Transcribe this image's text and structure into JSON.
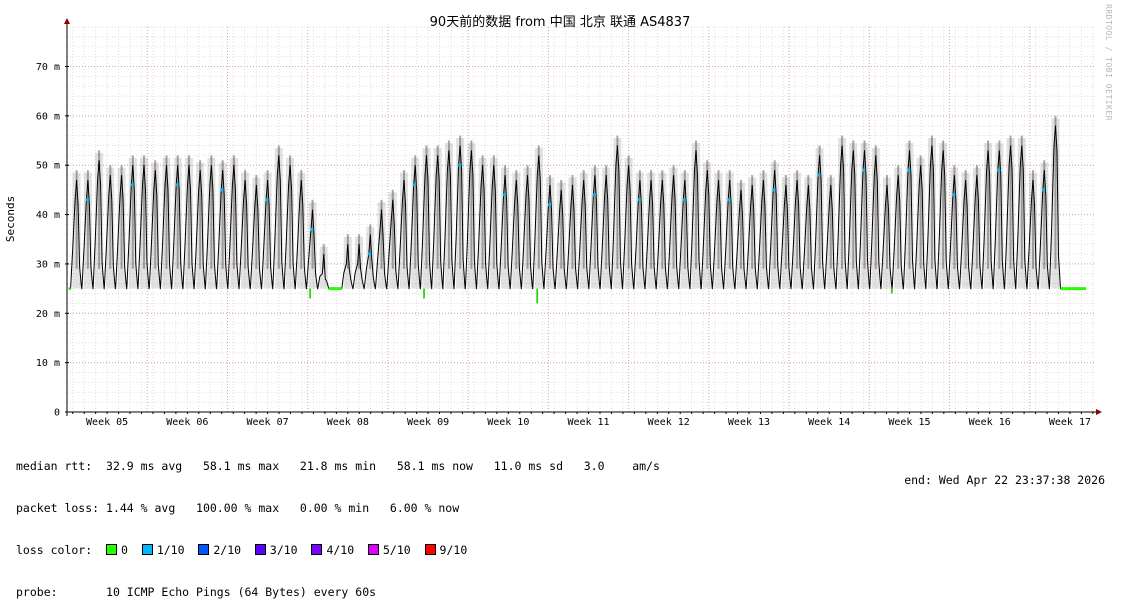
{
  "colors": {
    "plot_bg": "#ffffff",
    "minor_grid": "#dedede",
    "major_grid": "#e0a0a0",
    "axis": "#000000",
    "arrow": "#8b0000",
    "smoke": "#606060",
    "line": "#000000"
  },
  "chart_data": {
    "type": "line",
    "title": "90天前的数据 from 中国 北京 联通 AS4837",
    "ylabel": "Seconds",
    "ylim": [
      0,
      0.078
    ],
    "y_ticks": [
      {
        "value": 0,
        "label": "0"
      },
      {
        "value": 0.01,
        "label": "10 m"
      },
      {
        "value": 0.02,
        "label": "20 m"
      },
      {
        "value": 0.03,
        "label": "30 m"
      },
      {
        "value": 0.04,
        "label": "40 m"
      },
      {
        "value": 0.05,
        "label": "50 m"
      },
      {
        "value": 0.06,
        "label": "60 m"
      },
      {
        "value": 0.07,
        "label": "70 m"
      }
    ],
    "x_range_weeks": [
      4.5,
      17.3
    ],
    "x_ticks": [
      {
        "value": 5,
        "label": "Week 05"
      },
      {
        "value": 6,
        "label": "Week 06"
      },
      {
        "value": 7,
        "label": "Week 07"
      },
      {
        "value": 8,
        "label": "Week 08"
      },
      {
        "value": 9,
        "label": "Week 09"
      },
      {
        "value": 10,
        "label": "Week 10"
      },
      {
        "value": 11,
        "label": "Week 11"
      },
      {
        "value": 12,
        "label": "Week 12"
      },
      {
        "value": 13,
        "label": "Week 13"
      },
      {
        "value": 14,
        "label": "Week 14"
      },
      {
        "value": 15,
        "label": "Week 15"
      },
      {
        "value": 16,
        "label": "Week 16"
      },
      {
        "value": 17,
        "label": "Week 17"
      }
    ],
    "grid": true,
    "series": [
      {
        "name": "median rtt",
        "baseline": 0.025,
        "daily_peaks": [
          {
            "week": 4.62,
            "peak": 0.047
          },
          {
            "week": 4.76,
            "peak": 0.047
          },
          {
            "week": 4.9,
            "peak": 0.051
          },
          {
            "week": 5.04,
            "peak": 0.048
          },
          {
            "week": 5.18,
            "peak": 0.048
          },
          {
            "week": 5.32,
            "peak": 0.05
          },
          {
            "week": 5.46,
            "peak": 0.05
          },
          {
            "week": 5.6,
            "peak": 0.049
          },
          {
            "week": 5.74,
            "peak": 0.05
          },
          {
            "week": 5.88,
            "peak": 0.05
          },
          {
            "week": 6.02,
            "peak": 0.05
          },
          {
            "week": 6.16,
            "peak": 0.049
          },
          {
            "week": 6.3,
            "peak": 0.05
          },
          {
            "week": 6.44,
            "peak": 0.049
          },
          {
            "week": 6.58,
            "peak": 0.05
          },
          {
            "week": 6.72,
            "peak": 0.047
          },
          {
            "week": 6.86,
            "peak": 0.046
          },
          {
            "week": 7.0,
            "peak": 0.047
          },
          {
            "week": 7.14,
            "peak": 0.052
          },
          {
            "week": 7.28,
            "peak": 0.05
          },
          {
            "week": 7.42,
            "peak": 0.047
          },
          {
            "week": 7.56,
            "peak": 0.041
          },
          {
            "week": 7.7,
            "peak": 0.032
          },
          {
            "week": 8.0,
            "peak": 0.034
          },
          {
            "week": 8.14,
            "peak": 0.034
          },
          {
            "week": 8.28,
            "peak": 0.036
          },
          {
            "week": 8.42,
            "peak": 0.041
          },
          {
            "week": 8.56,
            "peak": 0.043
          },
          {
            "week": 8.7,
            "peak": 0.047
          },
          {
            "week": 8.84,
            "peak": 0.05
          },
          {
            "week": 8.98,
            "peak": 0.052
          },
          {
            "week": 9.12,
            "peak": 0.052
          },
          {
            "week": 9.26,
            "peak": 0.053
          },
          {
            "week": 9.4,
            "peak": 0.054
          },
          {
            "week": 9.54,
            "peak": 0.053
          },
          {
            "week": 9.68,
            "peak": 0.05
          },
          {
            "week": 9.82,
            "peak": 0.05
          },
          {
            "week": 9.96,
            "peak": 0.048
          },
          {
            "week": 10.1,
            "peak": 0.047
          },
          {
            "week": 10.24,
            "peak": 0.048
          },
          {
            "week": 10.38,
            "peak": 0.052
          },
          {
            "week": 10.52,
            "peak": 0.046
          },
          {
            "week": 10.66,
            "peak": 0.045
          },
          {
            "week": 10.8,
            "peak": 0.046
          },
          {
            "week": 10.94,
            "peak": 0.047
          },
          {
            "week": 11.08,
            "peak": 0.048
          },
          {
            "week": 11.22,
            "peak": 0.048
          },
          {
            "week": 11.36,
            "peak": 0.054
          },
          {
            "week": 11.5,
            "peak": 0.05
          },
          {
            "week": 11.64,
            "peak": 0.047
          },
          {
            "week": 11.78,
            "peak": 0.047
          },
          {
            "week": 11.92,
            "peak": 0.047
          },
          {
            "week": 12.06,
            "peak": 0.048
          },
          {
            "week": 12.2,
            "peak": 0.047
          },
          {
            "week": 12.34,
            "peak": 0.053
          },
          {
            "week": 12.48,
            "peak": 0.049
          },
          {
            "week": 12.62,
            "peak": 0.047
          },
          {
            "week": 12.76,
            "peak": 0.047
          },
          {
            "week": 12.9,
            "peak": 0.045
          },
          {
            "week": 13.04,
            "peak": 0.046
          },
          {
            "week": 13.18,
            "peak": 0.047
          },
          {
            "week": 13.32,
            "peak": 0.049
          },
          {
            "week": 13.46,
            "peak": 0.046
          },
          {
            "week": 13.6,
            "peak": 0.047
          },
          {
            "week": 13.74,
            "peak": 0.046
          },
          {
            "week": 13.88,
            "peak": 0.052
          },
          {
            "week": 14.02,
            "peak": 0.046
          },
          {
            "week": 14.16,
            "peak": 0.054
          },
          {
            "week": 14.3,
            "peak": 0.053
          },
          {
            "week": 14.44,
            "peak": 0.053
          },
          {
            "week": 14.58,
            "peak": 0.052
          },
          {
            "week": 14.72,
            "peak": 0.046
          },
          {
            "week": 14.86,
            "peak": 0.048
          },
          {
            "week": 15.0,
            "peak": 0.053
          },
          {
            "week": 15.14,
            "peak": 0.05
          },
          {
            "week": 15.28,
            "peak": 0.054
          },
          {
            "week": 15.42,
            "peak": 0.053
          },
          {
            "week": 15.56,
            "peak": 0.048
          },
          {
            "week": 15.7,
            "peak": 0.047
          },
          {
            "week": 15.84,
            "peak": 0.048
          },
          {
            "week": 15.98,
            "peak": 0.053
          },
          {
            "week": 16.12,
            "peak": 0.053
          },
          {
            "week": 16.26,
            "peak": 0.054
          },
          {
            "week": 16.4,
            "peak": 0.054
          },
          {
            "week": 16.54,
            "peak": 0.047
          },
          {
            "week": 16.68,
            "peak": 0.049
          },
          {
            "week": 16.82,
            "peak": 0.058
          }
        ],
        "dips": [
          {
            "week": 7.53,
            "value": 0.023
          },
          {
            "week": 8.95,
            "value": 0.023
          },
          {
            "week": 10.36,
            "value": 0.022
          },
          {
            "week": 14.78,
            "value": 0.024
          }
        ]
      }
    ]
  },
  "legend": {
    "median_label": "median rtt:",
    "median_values": "32.9 ms avg   58.1 ms max   21.8 ms min   58.1 ms now   11.0 ms sd   3.0    am/s",
    "loss_label": "packet loss:",
    "loss_values": "1.44 % avg   100.00 % max   0.00 % min   6.00 % now",
    "color_label": "loss color:",
    "loss_colors": [
      {
        "label": "0",
        "color": "#26ff00"
      },
      {
        "label": "1/10",
        "color": "#00b8ff"
      },
      {
        "label": "2/10",
        "color": "#0059ff"
      },
      {
        "label": "3/10",
        "color": "#5e00ff"
      },
      {
        "label": "4/10",
        "color": "#7e00ff"
      },
      {
        "label": "5/10",
        "color": "#dd00ff"
      },
      {
        "label": "9/10",
        "color": "#ff0000"
      }
    ],
    "probe_label": "probe:",
    "probe_value": "10 ICMP Echo Pings (64 Bytes) every 60s",
    "end_text": "end: Wed Apr 22 23:37:38 2026"
  },
  "credit": "RRDTOOL / TOBI OETIKER"
}
